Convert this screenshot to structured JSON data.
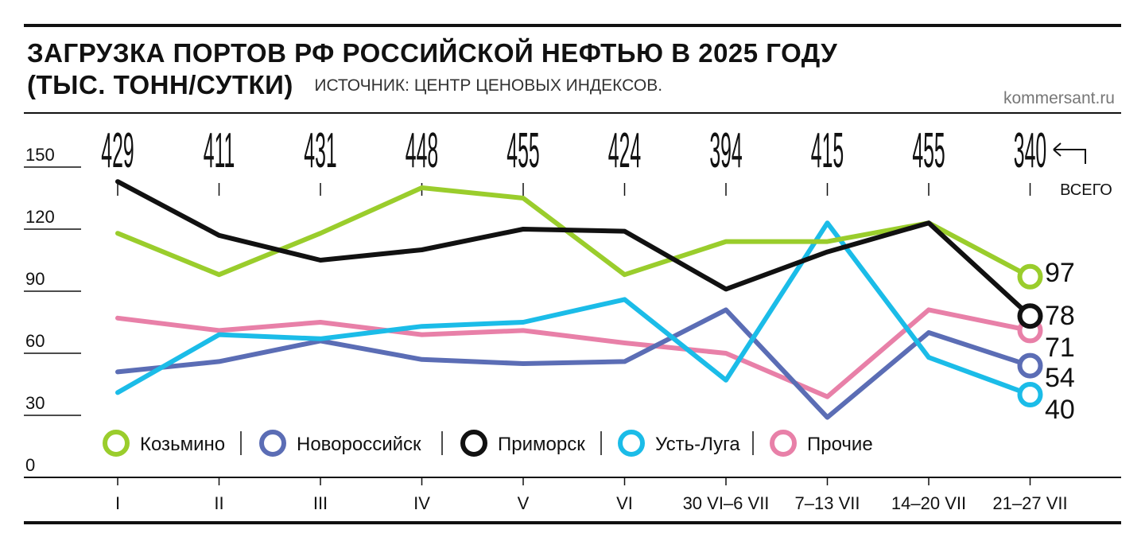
{
  "header": {
    "title": "ЗАГРУЗКА ПОРТОВ РФ РОССИЙСКОЙ НЕФТЬЮ В 2025 ГОДУ",
    "unit": "(ТЫС. ТОНН/СУТКИ)",
    "source": "ИСТОЧНИК: ЦЕНТР ЦЕНОВЫХ ИНДЕКСОВ.",
    "credit": "kommersant.ru"
  },
  "total_label": "ВСЕГО",
  "colors": {
    "Козьмино": "#9acd2c",
    "Новороссийск": "#5b6db5",
    "Приморск": "#111111",
    "Усть-Луга": "#1bbce8",
    "Прочие": "#e880a8"
  },
  "chart_data": {
    "type": "line",
    "categories": [
      "I",
      "II",
      "III",
      "IV",
      "V",
      "VI",
      "30 VI–6 VII",
      "7–13 VII",
      "14–20 VII",
      "21–27 VII"
    ],
    "yticks": [
      0,
      30,
      60,
      90,
      120,
      150
    ],
    "ylim": [
      0,
      150
    ],
    "totals": [
      "429",
      "411",
      "431",
      "448",
      "455",
      "424",
      "394",
      "415",
      "455",
      "340"
    ],
    "series": [
      {
        "name": "Козьмино",
        "values": [
          118,
          98,
          118,
          140,
          135,
          98,
          114,
          114,
          123,
          97
        ],
        "end_label": "97"
      },
      {
        "name": "Новороссийск",
        "values": [
          51,
          56,
          66,
          57,
          55,
          56,
          81,
          29,
          70,
          54
        ],
        "end_label": "54"
      },
      {
        "name": "Приморск",
        "values": [
          143,
          117,
          105,
          110,
          120,
          119,
          91,
          109,
          123,
          78
        ],
        "end_label": "78"
      },
      {
        "name": "Усть-Луга",
        "values": [
          41,
          69,
          67,
          73,
          75,
          86,
          47,
          123,
          58,
          40
        ],
        "end_label": "40"
      },
      {
        "name": "Прочие",
        "values": [
          77,
          71,
          75,
          69,
          71,
          65,
          60,
          39,
          81,
          71
        ],
        "end_label": "71"
      }
    ],
    "legend": [
      "Козьмино",
      "Новороссийск",
      "Приморск",
      "Усть-Луга",
      "Прочие"
    ],
    "legend_position": "bottom-left",
    "grid": false
  }
}
